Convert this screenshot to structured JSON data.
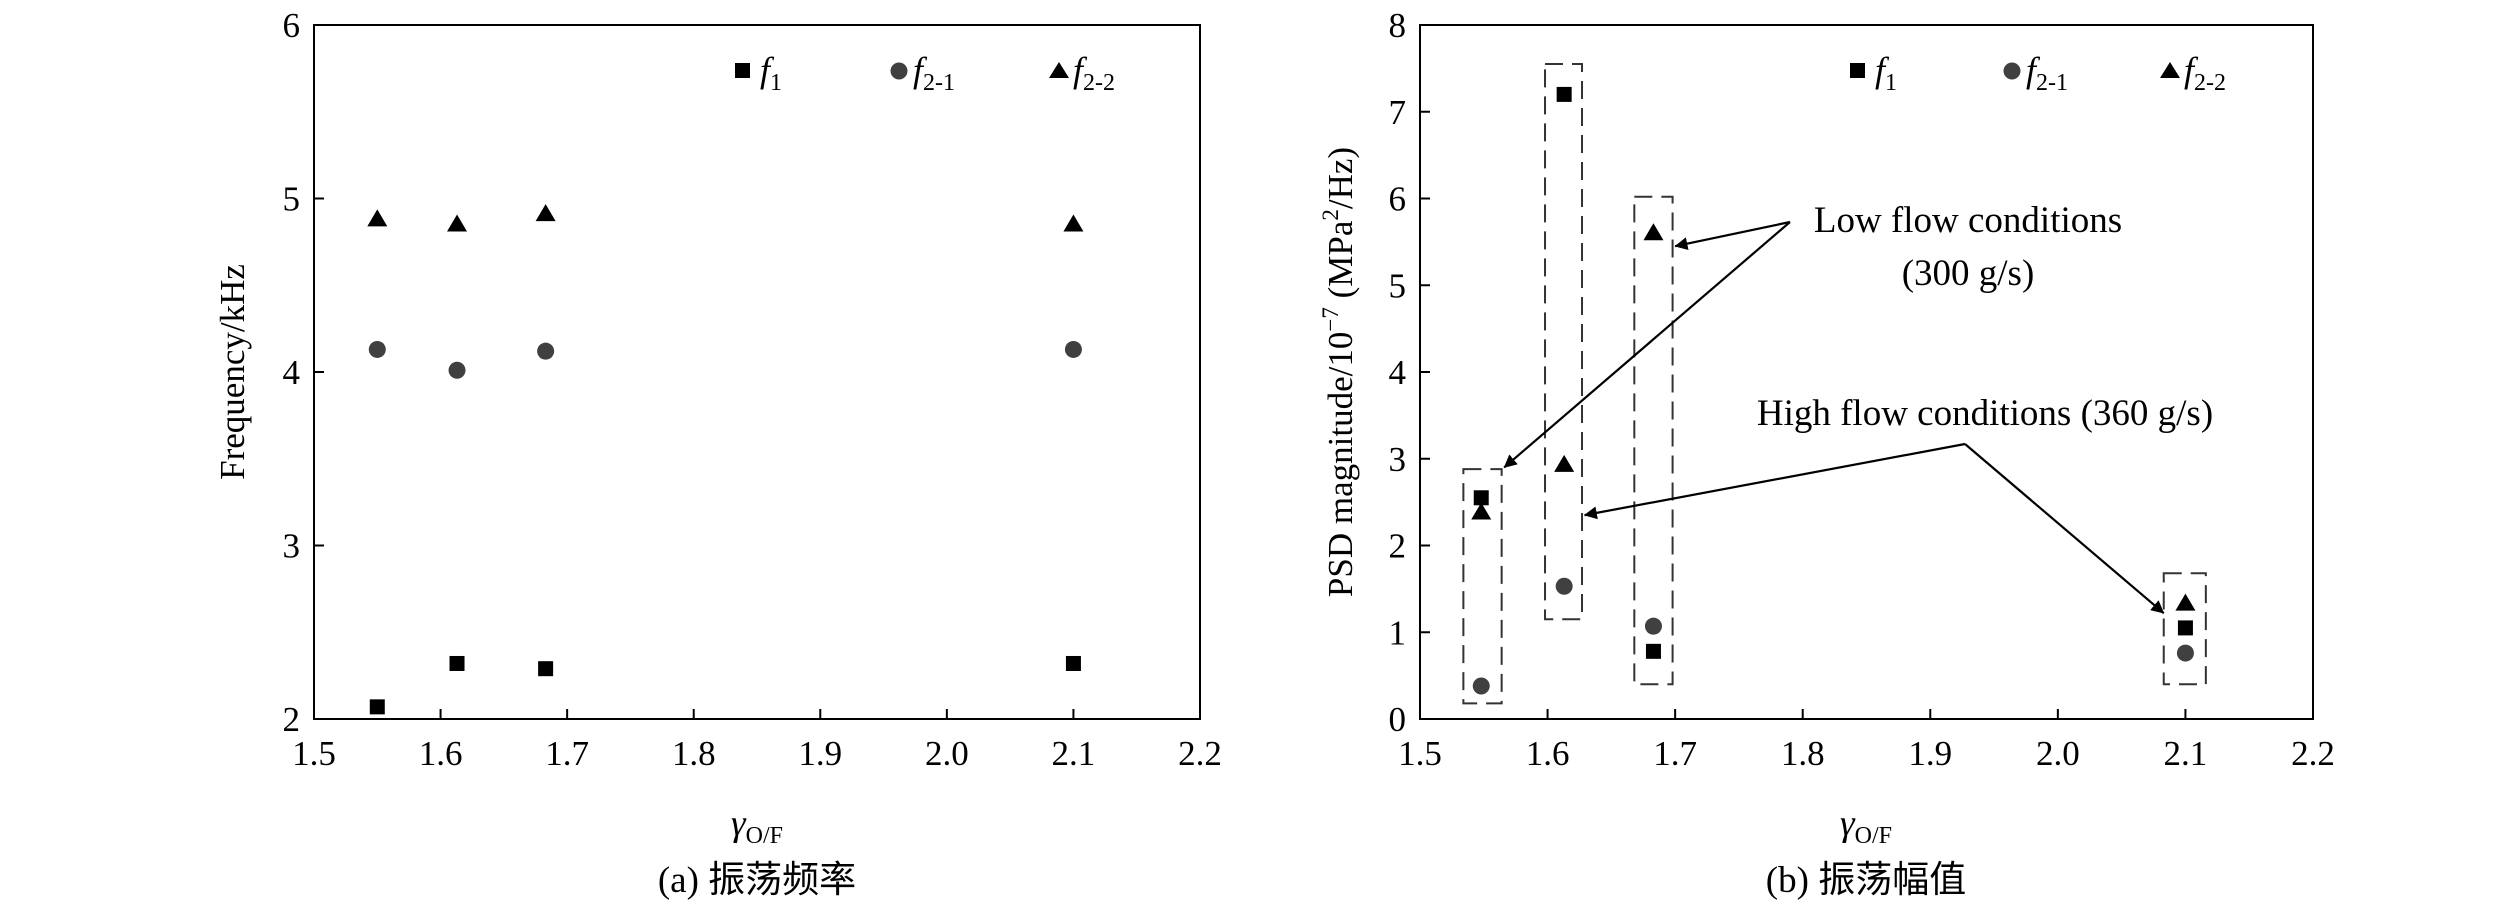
{
  "chart_data": [
    {
      "type": "scatter",
      "caption": "(a) 振荡频率",
      "ylabel": "Frequency/kHz",
      "xlabel_base": "γ",
      "xlabel_sub": "O/F",
      "xlim": [
        1.5,
        2.2
      ],
      "ylim": [
        2,
        6
      ],
      "xticks": [
        "1.5",
        "1.6",
        "1.7",
        "1.8",
        "1.9",
        "2.0",
        "2.1",
        "2.2"
      ],
      "yticks": [
        "2",
        "3",
        "4",
        "5",
        "6"
      ],
      "legend_position": "top-right",
      "series": [
        {
          "name": "f1",
          "label_main": "f",
          "label_sub": "1",
          "marker": "square",
          "x": [
            1.55,
            1.613,
            1.683,
            2.1
          ],
          "y": [
            2.07,
            2.32,
            2.29,
            2.32
          ]
        },
        {
          "name": "f2-1",
          "label_main": "f",
          "label_sub": "2-1",
          "marker": "circle",
          "x": [
            1.55,
            1.613,
            1.683,
            2.1
          ],
          "y": [
            4.13,
            4.01,
            4.12,
            4.13
          ]
        },
        {
          "name": "f2-2",
          "label_main": "f",
          "label_sub": "2-2",
          "marker": "triangle",
          "x": [
            1.55,
            1.613,
            1.683,
            2.1
          ],
          "y": [
            4.88,
            4.85,
            4.91,
            4.85
          ]
        }
      ]
    },
    {
      "type": "scatter",
      "caption": "(b) 振荡幅值",
      "ylabel_pre": "PSD magnitude/10",
      "ylabel_exp": "−7",
      "ylabel_mid": " (MPa",
      "ylabel_exp2": "2",
      "ylabel_post": "/Hz)",
      "xlabel_base": "γ",
      "xlabel_sub": "O/F",
      "xlim": [
        1.5,
        2.2
      ],
      "ylim": [
        0,
        8
      ],
      "xticks": [
        "1.5",
        "1.6",
        "1.7",
        "1.8",
        "1.9",
        "2.0",
        "2.1",
        "2.2"
      ],
      "yticks": [
        "0",
        "1",
        "2",
        "3",
        "4",
        "5",
        "6",
        "7",
        "8"
      ],
      "legend_position": "top-right",
      "series": [
        {
          "name": "f1",
          "label_main": "f",
          "label_sub": "1",
          "marker": "square",
          "x": [
            1.548,
            1.613,
            1.683,
            2.1
          ],
          "y": [
            2.55,
            7.2,
            0.78,
            1.05
          ]
        },
        {
          "name": "f2-1",
          "label_main": "f",
          "label_sub": "2-1",
          "marker": "circle",
          "x": [
            1.548,
            1.613,
            1.683,
            2.1
          ],
          "y": [
            0.38,
            1.53,
            1.07,
            0.76
          ]
        },
        {
          "name": "f2-2",
          "label_main": "f",
          "label_sub": "2-2",
          "marker": "triangle",
          "x": [
            1.548,
            1.613,
            1.683,
            2.1
          ],
          "y": [
            2.38,
            2.93,
            5.6,
            1.33
          ]
        }
      ],
      "boxes": [
        {
          "x": [
            1.534,
            1.564
          ],
          "y": [
            0.18,
            2.88
          ]
        },
        {
          "x": [
            1.598,
            1.627
          ],
          "y": [
            1.15,
            7.55
          ]
        },
        {
          "x": [
            1.668,
            1.698
          ],
          "y": [
            0.4,
            6.02
          ]
        },
        {
          "x": [
            2.083,
            2.116
          ],
          "y": [
            0.4,
            1.68
          ]
        }
      ],
      "annotations": [
        {
          "id": "low-flow",
          "lines": [
            "Low flow conditions",
            "(300 g/s)"
          ],
          "arrows_to": [
            [
              1.7,
              5.45
            ],
            [
              1.566,
              2.9
            ]
          ]
        },
        {
          "id": "high-flow",
          "lines": [
            "High flow conditions (360 g/s)"
          ],
          "arrows_to": [
            [
              1.629,
              2.35
            ],
            [
              2.083,
              1.22
            ]
          ]
        }
      ]
    }
  ]
}
